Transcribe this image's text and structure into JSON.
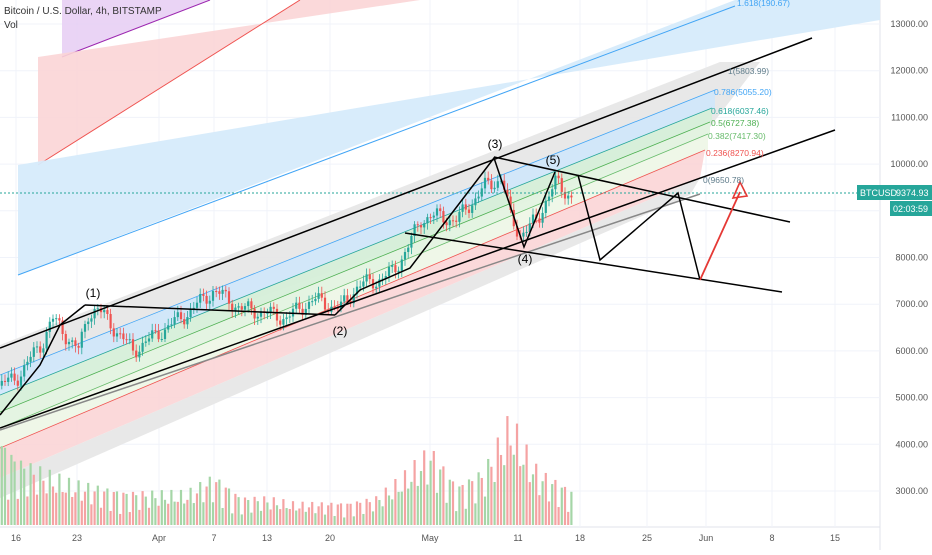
{
  "header": {
    "symbol_title": "Bitcoin / U.S. Dollar, 4h, BITSTAMP",
    "volume_label": "Vol"
  },
  "price_badge": {
    "symbol": "BTCUSD",
    "price": "9374.93",
    "countdown": "02:03:59"
  },
  "colors": {
    "up": "#26a69a",
    "down": "#ef5350",
    "price_line": "#26a69a",
    "fib_grey": "#e0e0e0",
    "fib_blue": "#cfe7fb",
    "fib_red": "#fbd5d6",
    "fib_purple": "#e6cdf3",
    "wave_line": "#000000",
    "projection_arrow": "#e53935"
  },
  "chart_data": {
    "type": "candlestick",
    "title": "Bitcoin / U.S. Dollar, 4h, BITSTAMP",
    "ylim": [
      2400,
      13800
    ],
    "y_ticks": [
      3000,
      4000,
      5000,
      6000,
      7000,
      8000,
      9000,
      10000,
      11000,
      12000,
      13000
    ],
    "y_tick_labels": [
      "3000.00",
      "4000.00",
      "5000.00",
      "6000.00",
      "7000.00",
      "8000.00",
      "9000.00",
      "10000.00",
      "11000.00",
      "12000.00",
      "13000.00"
    ],
    "x_tick_labels": [
      "16",
      "23",
      "Apr",
      "7",
      "13",
      "20",
      "May",
      "11",
      "18",
      "25",
      "Jun",
      "8",
      "15"
    ],
    "current_price": 9374.93,
    "price_path": [
      {
        "date": "Mar 13",
        "price": 5200
      },
      {
        "date": "Mar 16",
        "price": 5400
      },
      {
        "date": "Mar 19",
        "price": 6200
      },
      {
        "date": "Mar 20",
        "price": 6700
      },
      {
        "date": "Mar 23",
        "price": 6000
      },
      {
        "date": "Mar 24",
        "price": 6800
      },
      {
        "date": "Mar 25",
        "price": 6900
      },
      {
        "date": "Mar 26",
        "price": 6700
      },
      {
        "date": "Mar 29",
        "price": 6000
      },
      {
        "date": "Apr 1",
        "price": 6400
      },
      {
        "date": "Apr 4",
        "price": 6800
      },
      {
        "date": "Apr 7",
        "price": 7300
      },
      {
        "date": "Apr 10",
        "price": 6900
      },
      {
        "date": "Apr 12",
        "price": 6850
      },
      {
        "date": "Apr 15",
        "price": 6700
      },
      {
        "date": "Apr 18",
        "price": 7100
      },
      {
        "date": "Apr 21",
        "price": 6900
      },
      {
        "date": "Apr 23",
        "price": 7400
      },
      {
        "date": "Apr 25",
        "price": 7500
      },
      {
        "date": "Apr 27",
        "price": 7700
      },
      {
        "date": "Apr 29",
        "price": 8400
      },
      {
        "date": "Apr 30",
        "price": 8800
      },
      {
        "date": "May 1",
        "price": 8900
      },
      {
        "date": "May 4",
        "price": 8800
      },
      {
        "date": "May 7",
        "price": 9500
      },
      {
        "date": "May 9",
        "price": 9700
      },
      {
        "date": "May 10",
        "price": 8800
      },
      {
        "date": "May 11",
        "price": 8500
      },
      {
        "date": "May 13",
        "price": 8800
      },
      {
        "date": "May 14",
        "price": 9300
      },
      {
        "date": "May 15",
        "price": 9600
      },
      {
        "date": "May 16",
        "price": 9400
      },
      {
        "date": "May 17",
        "price": 9300
      }
    ],
    "volume": {
      "dates": [
        "Mar 13",
        "Mar 16",
        "Mar 19",
        "Mar 22",
        "Mar 25",
        "Mar 28",
        "Apr 1",
        "Apr 4",
        "Apr 7",
        "Apr 10",
        "Apr 13",
        "Apr 16",
        "Apr 19",
        "Apr 22",
        "Apr 25",
        "Apr 28",
        "May 1",
        "May 4",
        "May 7",
        "May 10",
        "May 11",
        "May 13",
        "May 15",
        "May 17"
      ],
      "values": [
        0.9,
        0.6,
        0.5,
        0.4,
        0.35,
        0.3,
        0.3,
        0.3,
        0.45,
        0.25,
        0.25,
        0.2,
        0.2,
        0.2,
        0.25,
        0.45,
        0.7,
        0.35,
        0.5,
        1.0,
        0.8,
        0.5,
        0.4,
        0.3
      ]
    },
    "annotations": [
      {
        "text": "(1)",
        "date": "Mar 24",
        "price": 7150
      },
      {
        "text": "(2)",
        "date": "Apr 20",
        "price": 6300
      },
      {
        "text": "(3)",
        "date": "May 8",
        "price": 10400
      },
      {
        "text": "(4)",
        "date": "May 11",
        "price": 7930
      },
      {
        "text": "(5)",
        "date": "May 15",
        "price": 10080
      }
    ],
    "fib_levels": [
      {
        "label": "1.618(190.67)",
        "color": "#42a5f5"
      },
      {
        "label": "1(5803.99)",
        "color": "#607d8b"
      },
      {
        "label": "0.786(5055.20)",
        "color": "#42a5f5"
      },
      {
        "label": "0.618(6037.46)",
        "color": "#26a69a"
      },
      {
        "label": "0.5(6727.38)",
        "color": "#4caf50"
      },
      {
        "label": "0.382(7417.30)",
        "color": "#66bb6a"
      },
      {
        "label": "0.236(8270.94)",
        "color": "#ef5350"
      },
      {
        "label": "0(9650.78)",
        "color": "#607d8b"
      }
    ]
  }
}
